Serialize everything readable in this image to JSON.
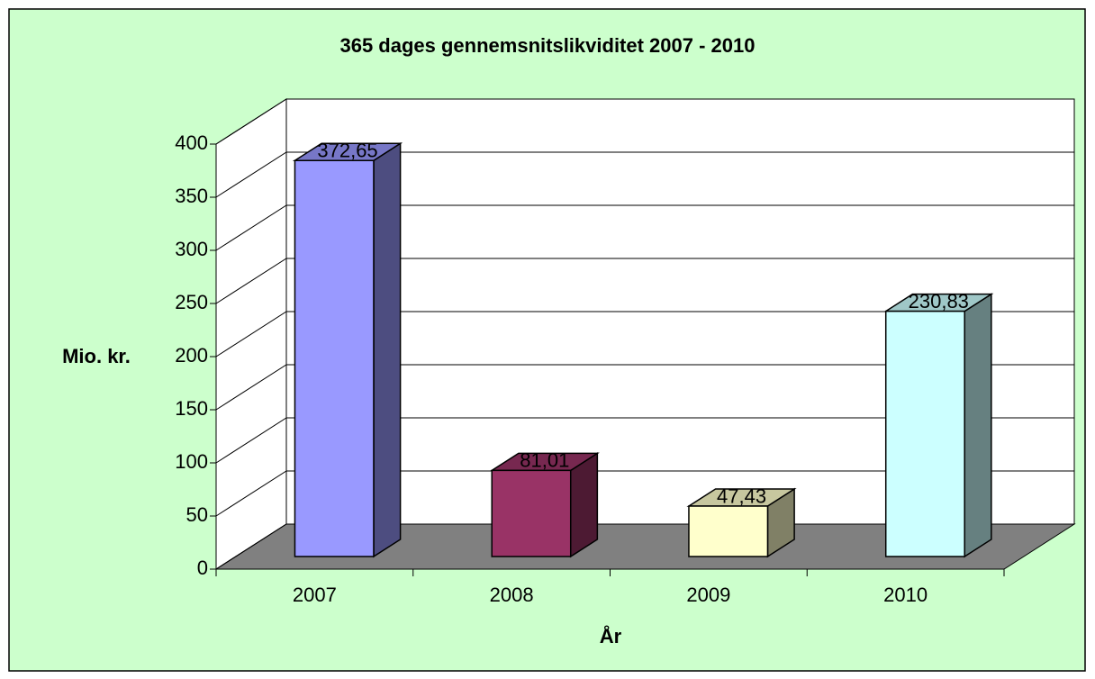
{
  "chart_data": {
    "type": "bar3d",
    "title": "365 dages gennemsnitslikviditet 2007 - 2010",
    "y_label": "Mio. kr.",
    "x_label": "År",
    "categories": [
      "2007",
      "2008",
      "2009",
      "2010"
    ],
    "values": [
      372.65,
      81.01,
      47.43,
      230.83
    ],
    "value_labels": [
      "372,65",
      "81,01",
      "47,43",
      "230,83"
    ],
    "colors": [
      "#9999ff",
      "#993366",
      "#ffffcc",
      "#ccffff"
    ],
    "ylim": [
      0,
      400
    ],
    "yticks": [
      0,
      50,
      100,
      150,
      200,
      250,
      300,
      350,
      400
    ],
    "grid": true
  }
}
